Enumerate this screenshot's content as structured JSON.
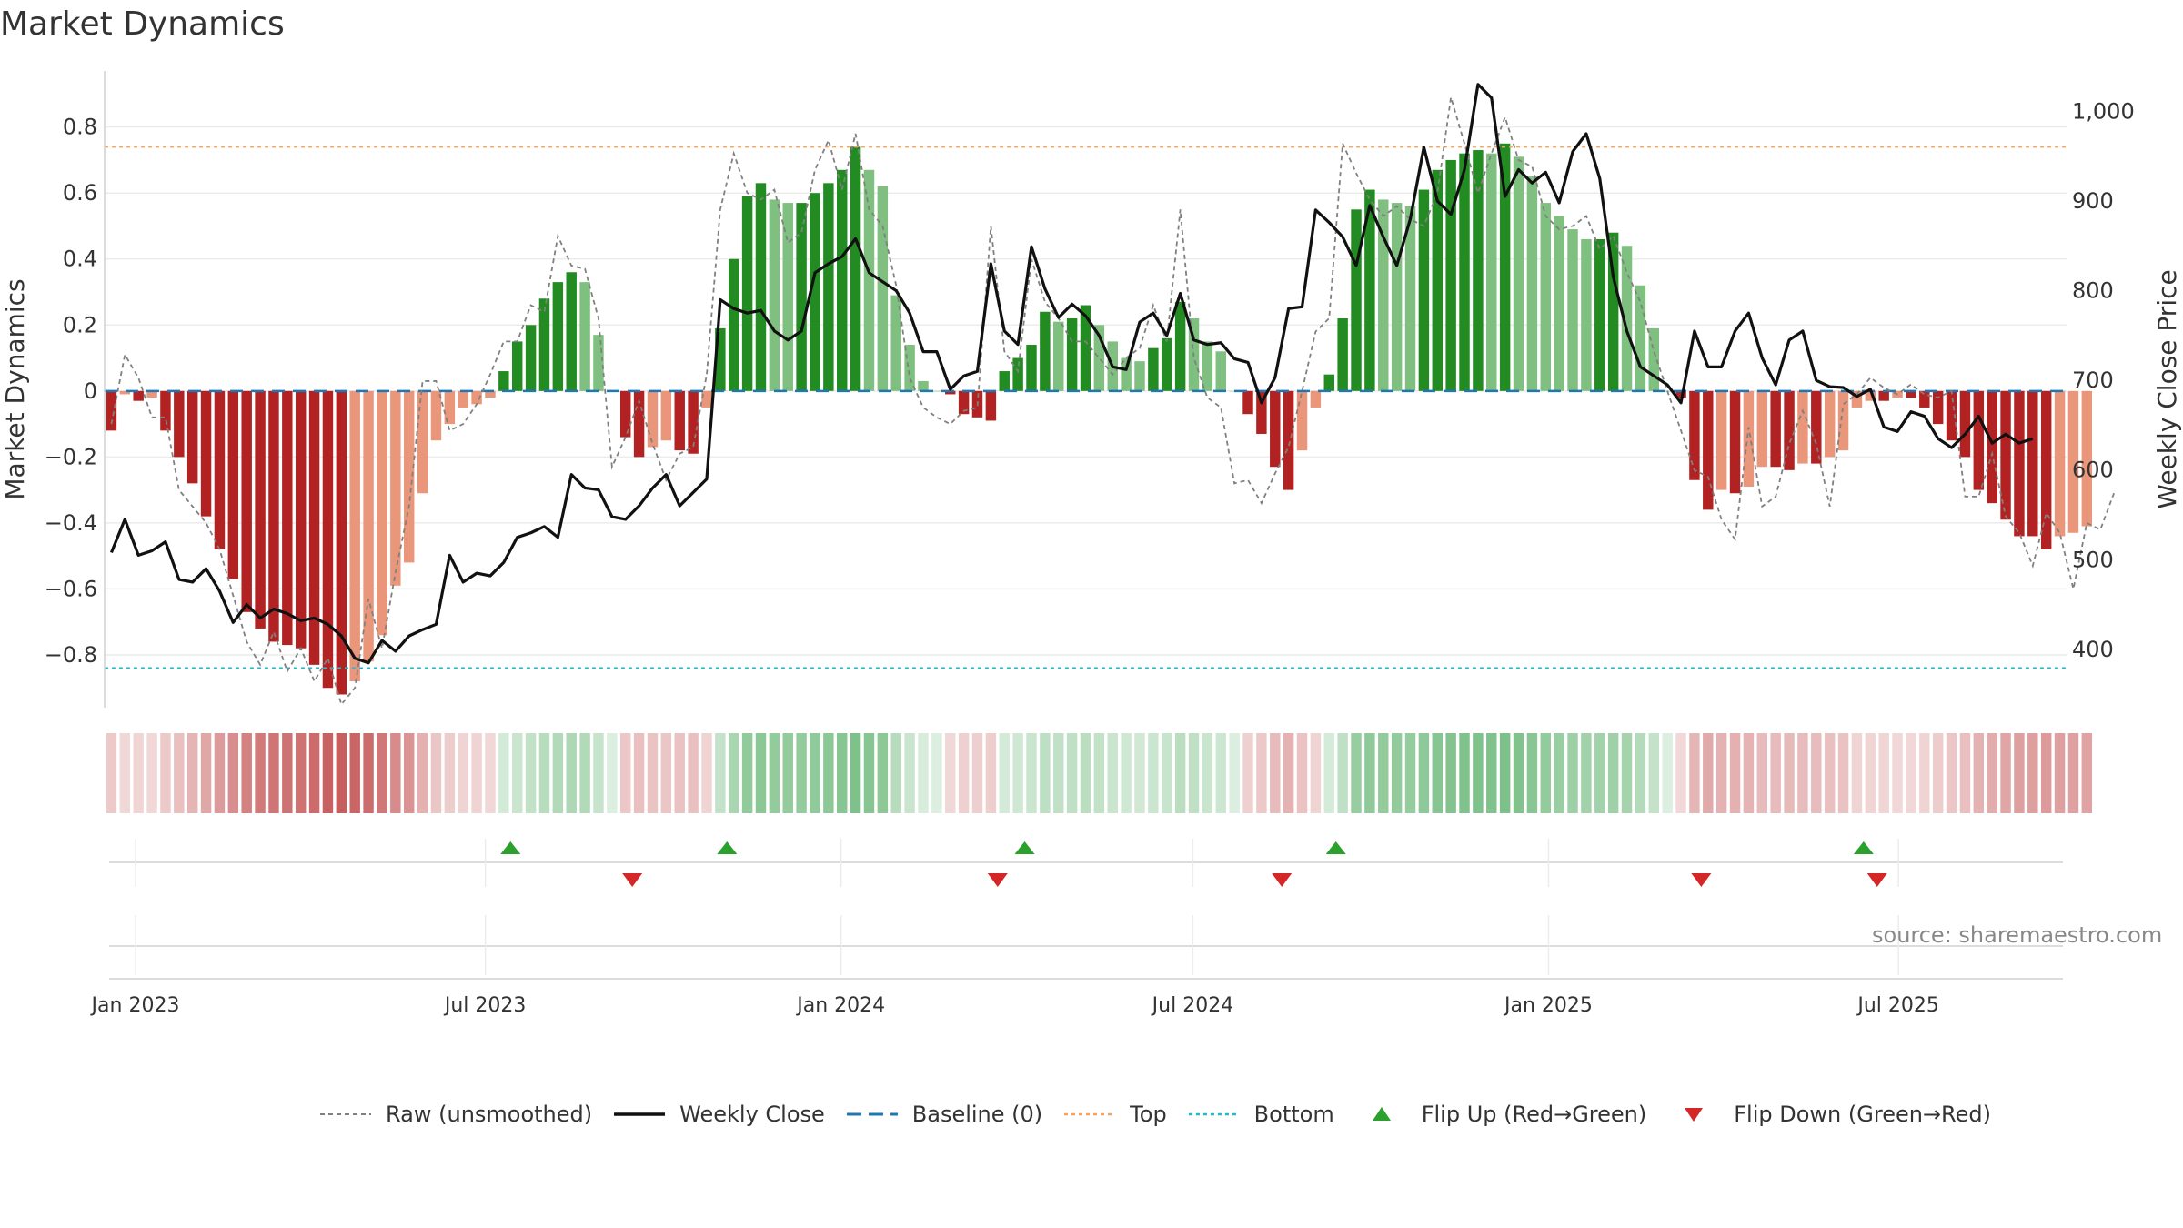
{
  "title": "Market Dynamics",
  "source": "source: sharemaestro.com",
  "colors": {
    "strong_green": "#228b22",
    "weak_green": "#7fbf7f",
    "strong_red": "#b22222",
    "weak_red": "#e9967a",
    "baseline": "#1f77b4",
    "top": "#f4a460",
    "bottom": "#17becf",
    "raw": "#808080",
    "close": "#111111",
    "flip_up": "#2ca02c",
    "flip_down": "#d62728"
  },
  "legend": [
    {
      "key": "raw",
      "label": "Raw (unsmoothed)",
      "icon": "dotted-gray-line"
    },
    {
      "key": "close",
      "label": "Weekly Close",
      "icon": "solid-black-line"
    },
    {
      "key": "baseline",
      "label": "Baseline (0)",
      "icon": "dashed-blue-line"
    },
    {
      "key": "top",
      "label": "Top",
      "icon": "dotted-orange-line"
    },
    {
      "key": "bottom",
      "label": "Bottom",
      "icon": "dotted-cyan-line"
    },
    {
      "key": "flip_up",
      "label": "Flip Up (Red→Green)",
      "icon": "green-triangle-up"
    },
    {
      "key": "flip_down",
      "label": "Flip Down (Green→Red)",
      "icon": "red-triangle-down"
    }
  ],
  "chart_data": {
    "type": "bar",
    "ylabel": "Market Dynamics",
    "y2label": "Weekly Close Price",
    "ylim": [
      -0.96,
      0.97
    ],
    "y2lim": [
      335,
      1045
    ],
    "yticks": [
      -0.8,
      -0.6,
      -0.4,
      -0.2,
      0,
      0.2,
      0.4,
      0.6,
      0.8
    ],
    "yticklabels": [
      "−0.8",
      "−0.6",
      "−0.4",
      "−0.2",
      "0",
      "0.2",
      "0.4",
      "0.6",
      "0.8"
    ],
    "y2ticks": [
      400,
      500,
      600,
      700,
      800,
      900,
      1000
    ],
    "y2ticklabels": [
      "400",
      "500",
      "600",
      "700",
      "800",
      "900",
      "1,000"
    ],
    "xticks": [
      "2023-01-01",
      "2023-07-01",
      "2024-01-01",
      "2024-07-01",
      "2025-01-01",
      "2025-07-01"
    ],
    "xticklabels": [
      "Jan 2023",
      "Jul 2023",
      "Jan 2024",
      "Jul 2024",
      "Jan 2025",
      "Jul 2025"
    ],
    "x_start": "2022-12-16",
    "x_end": "2025-09-26",
    "top_line": 0.74,
    "bottom_line": -0.84,
    "grid": true,
    "legend_position": "bottom",
    "bar_values": [
      -0.12,
      -0.01,
      -0.03,
      -0.02,
      -0.12,
      -0.2,
      -0.28,
      -0.38,
      -0.48,
      -0.57,
      -0.67,
      -0.72,
      -0.76,
      -0.77,
      -0.78,
      -0.83,
      -0.9,
      -0.92,
      -0.88,
      -0.82,
      -0.74,
      -0.59,
      -0.52,
      -0.31,
      -0.15,
      -0.1,
      -0.05,
      -0.04,
      -0.02,
      0.06,
      0.15,
      0.2,
      0.28,
      0.33,
      0.36,
      0.33,
      0.17,
      0.0,
      -0.14,
      -0.2,
      -0.17,
      -0.15,
      -0.18,
      -0.19,
      -0.05,
      0.19,
      0.4,
      0.59,
      0.63,
      0.58,
      0.57,
      0.57,
      0.6,
      0.63,
      0.67,
      0.74,
      0.67,
      0.62,
      0.29,
      0.14,
      0.03,
      0.0,
      -0.01,
      -0.07,
      -0.08,
      -0.09,
      0.06,
      0.1,
      0.14,
      0.24,
      0.21,
      0.22,
      0.26,
      0.2,
      0.15,
      0.1,
      0.09,
      0.13,
      0.16,
      0.27,
      0.22,
      0.15,
      0.12,
      0.0,
      -0.07,
      -0.13,
      -0.23,
      -0.3,
      -0.18,
      -0.05,
      0.05,
      0.22,
      0.55,
      0.61,
      0.58,
      0.57,
      0.56,
      0.61,
      0.67,
      0.7,
      0.72,
      0.73,
      0.72,
      0.75,
      0.71,
      0.65,
      0.57,
      0.53,
      0.49,
      0.46,
      0.46,
      0.48,
      0.44,
      0.32,
      0.19,
      0.0,
      -0.02,
      -0.27,
      -0.36,
      -0.3,
      -0.31,
      -0.29,
      -0.23,
      -0.23,
      -0.24,
      -0.22,
      -0.22,
      -0.2,
      -0.18,
      -0.05,
      -0.03,
      -0.03,
      -0.02,
      -0.02,
      -0.05,
      -0.1,
      -0.15,
      -0.2,
      -0.3,
      -0.34,
      -0.39,
      -0.44,
      -0.44,
      -0.48,
      -0.44,
      -0.43,
      -0.41
    ],
    "series": [
      {
        "name": "Raw (unsmoothed)",
        "values": [
          -0.1,
          0.11,
          0.04,
          -0.08,
          -0.08,
          -0.3,
          -0.35,
          -0.4,
          -0.48,
          -0.62,
          -0.76,
          -0.83,
          -0.73,
          -0.85,
          -0.78,
          -0.88,
          -0.81,
          -0.95,
          -0.9,
          -0.63,
          -0.78,
          -0.55,
          -0.35,
          0.03,
          0.03,
          -0.12,
          -0.1,
          -0.04,
          0.05,
          0.15,
          0.15,
          0.26,
          0.24,
          0.47,
          0.38,
          0.37,
          0.22,
          -0.23,
          -0.14,
          -0.03,
          -0.16,
          -0.27,
          -0.19,
          -0.17,
          0.05,
          0.55,
          0.72,
          0.6,
          0.58,
          0.61,
          0.45,
          0.48,
          0.67,
          0.76,
          0.61,
          0.78,
          0.55,
          0.5,
          0.32,
          0.04,
          -0.05,
          -0.08,
          -0.1,
          -0.06,
          -0.05,
          0.5,
          0.12,
          0.06,
          0.4,
          0.27,
          0.22,
          0.15,
          0.15,
          0.1,
          0.05,
          0.1,
          0.13,
          0.26,
          0.15,
          0.55,
          0.1,
          -0.02,
          -0.05,
          -0.28,
          -0.27,
          -0.34,
          -0.25,
          -0.17,
          0.0,
          0.18,
          0.22,
          0.75,
          0.66,
          0.58,
          0.53,
          0.56,
          0.52,
          0.5,
          0.6,
          0.89,
          0.75,
          0.6,
          0.72,
          0.83,
          0.7,
          0.68,
          0.53,
          0.49,
          0.5,
          0.53,
          0.43,
          0.47,
          0.36,
          0.27,
          0.12,
          0.0,
          -0.12,
          -0.24,
          -0.26,
          -0.39,
          -0.45,
          -0.11,
          -0.35,
          -0.32,
          -0.16,
          -0.06,
          -0.16,
          -0.35,
          -0.04,
          -0.01,
          0.04,
          0.01,
          -0.01,
          0.02,
          -0.01,
          -0.02,
          0.0,
          -0.32,
          -0.32,
          -0.19,
          -0.38,
          -0.43,
          -0.53,
          -0.37,
          -0.43,
          -0.6,
          -0.4,
          -0.42,
          -0.31
        ]
      },
      {
        "name": "Weekly Close",
        "values": [
          508,
          545,
          505,
          510,
          520,
          478,
          475,
          490,
          465,
          430,
          450,
          435,
          445,
          440,
          432,
          435,
          428,
          415,
          390,
          385,
          410,
          398,
          415,
          422,
          428,
          505,
          475,
          485,
          482,
          497,
          525,
          530,
          537,
          525,
          595,
          580,
          578,
          548,
          545,
          560,
          580,
          595,
          560,
          575,
          590,
          790,
          780,
          775,
          778,
          755,
          745,
          755,
          820,
          830,
          838,
          858,
          820,
          810,
          800,
          775,
          732,
          732,
          690,
          705,
          710,
          830,
          755,
          740,
          849,
          802,
          770,
          785,
          772,
          750,
          715,
          712,
          765,
          775,
          750,
          797,
          745,
          740,
          742,
          724,
          720,
          675,
          703,
          780,
          782,
          890,
          876,
          860,
          828,
          895,
          860,
          828,
          880,
          960,
          900,
          885,
          935,
          1030,
          1015,
          905,
          935,
          920,
          932,
          898,
          955,
          975,
          925,
          815,
          755,
          715,
          705,
          695,
          675,
          755,
          715,
          715,
          755,
          775,
          725,
          695,
          745,
          755,
          700,
          693,
          692,
          682,
          690,
          648,
          643,
          665,
          660,
          635,
          625,
          640,
          660,
          630,
          640,
          630,
          635
        ]
      }
    ],
    "flips_up": [
      "2023-07-14",
      "2023-11-03",
      "2024-04-05",
      "2024-09-13",
      "2025-06-13"
    ],
    "flips_down": [
      "2023-09-15",
      "2024-03-22",
      "2024-08-16",
      "2025-03-21",
      "2025-06-20"
    ]
  }
}
